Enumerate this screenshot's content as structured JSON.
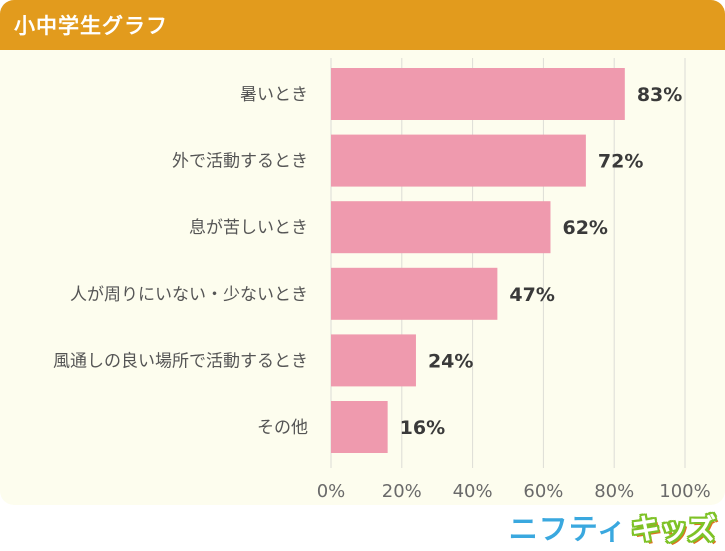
{
  "header": {
    "title": "小中学生グラフ"
  },
  "chart_data": {
    "type": "bar",
    "orientation": "horizontal",
    "categories": [
      "暑いとき",
      "外で活動するとき",
      "息が苦しいとき",
      "人が周りにいない・少ないとき",
      "風通しの良い場所で活動するとき",
      "その他"
    ],
    "values": [
      83,
      72,
      62,
      47,
      24,
      16
    ],
    "value_labels": [
      "83%",
      "72%",
      "62%",
      "47%",
      "24%",
      "16%"
    ],
    "xlim": [
      0,
      100
    ],
    "xticks": [
      0,
      20,
      40,
      60,
      80,
      100
    ],
    "xtick_labels": [
      "0%",
      "20%",
      "40%",
      "60%",
      "80%",
      "100%"
    ],
    "grid": true,
    "bar_color": "#ef9aae",
    "grid_color": "#dcdcd6"
  },
  "logo": {
    "part1": "ニフティ",
    "part2": "キッズ"
  }
}
